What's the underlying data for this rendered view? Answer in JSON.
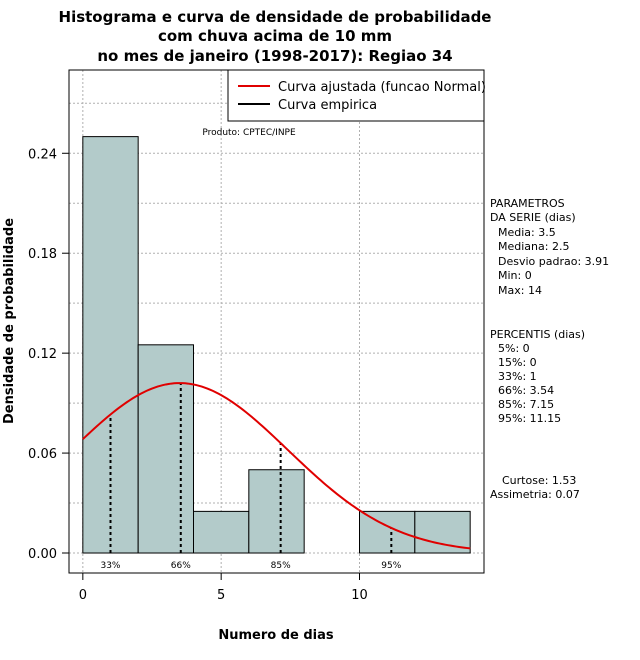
{
  "chart_data": {
    "type": "bar",
    "title_lines": [
      "Histograma e curva de densidade de probabilidade",
      "com chuva acima de 10 mm",
      "no mes de janeiro (1998-2017): Regiao 34"
    ],
    "xlabel": "Numero de dias",
    "ylabel": "Densidade de probabilidade",
    "xlim": [
      -0.5,
      14.5
    ],
    "ylim": [
      -0.012,
      0.29
    ],
    "xticks": [
      0,
      5,
      10
    ],
    "yticks": [
      0.0,
      0.06,
      0.12,
      0.18,
      0.24
    ],
    "ytick_labels": [
      "0.00",
      "0.06",
      "0.12",
      "0.18",
      "0.24"
    ],
    "grid": true,
    "product_label": "Produto: CPTEC/INPE",
    "bins": [
      {
        "x0": 0,
        "x1": 2,
        "density": 0.25
      },
      {
        "x0": 2,
        "x1": 4,
        "density": 0.125
      },
      {
        "x0": 4,
        "x1": 6,
        "density": 0.025
      },
      {
        "x0": 6,
        "x1": 8,
        "density": 0.05
      },
      {
        "x0": 8,
        "x1": 10,
        "density": 0.0
      },
      {
        "x0": 10,
        "x1": 12,
        "density": 0.025
      },
      {
        "x0": 12,
        "x1": 14,
        "density": 0.025
      }
    ],
    "bar_color": "#b3cbca",
    "curve": {
      "name": "Curva ajustada (funcao Normal)",
      "color": "#e00000",
      "mean": 3.5,
      "sd": 3.91,
      "x_range": [
        0,
        14
      ]
    },
    "empirical": {
      "name": "Curva empirica",
      "color": "#000000"
    },
    "legend_position": "top-right",
    "percentile_marks": [
      {
        "x": 1,
        "label": "33%"
      },
      {
        "x": 3.54,
        "label": "66%"
      },
      {
        "x": 7.15,
        "label": "85%"
      },
      {
        "x": 11.15,
        "label": "95%"
      }
    ],
    "stats_panel": {
      "params_title": [
        "PARAMETROS",
        "DA SERIE (dias)"
      ],
      "params": [
        "Media: 3.5",
        "Mediana: 2.5",
        "Desvio padrao: 3.91",
        "Min: 0",
        "Max: 14"
      ],
      "percentis_title": "PERCENTIS (dias)",
      "percentis": [
        "5%: 0",
        "15%: 0",
        "33%: 1",
        "66%: 3.54",
        "85%: 7.15",
        "95%: 11.15"
      ],
      "shape": [
        "Curtose: 1.53",
        "Assimetria: 0.07"
      ]
    }
  }
}
